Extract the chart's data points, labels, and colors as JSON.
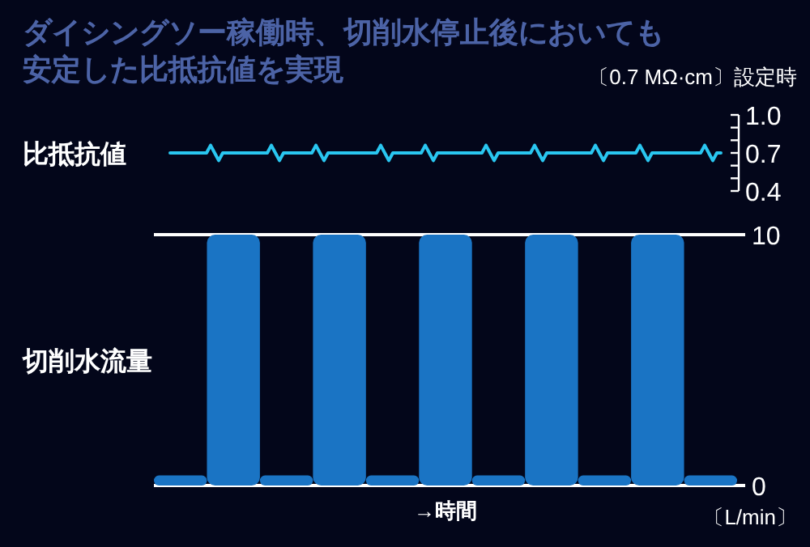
{
  "chart_data": [
    {
      "type": "line",
      "title": "ダイシングソー稼働時、切削水停止後においても安定した比抵抗値を実現",
      "ylabel": "比抵抗値",
      "annotations": [
        "〔0.7 MΩ·cm〕設定時"
      ],
      "categories": [
        null,
        null,
        null,
        null,
        null,
        null,
        null,
        null,
        null,
        null,
        null,
        null,
        null,
        null,
        null,
        null,
        null,
        null,
        null,
        null,
        null,
        null,
        null,
        null,
        null,
        null,
        null,
        null,
        null,
        null,
        null,
        null,
        null,
        null,
        null,
        null,
        null,
        null,
        null,
        null,
        null,
        null,
        null,
        null,
        null,
        null,
        null,
        null,
        null,
        null,
        null,
        null,
        null,
        null,
        null,
        null,
        null,
        null,
        null,
        null,
        null,
        null,
        null,
        null,
        null,
        null,
        null,
        null,
        null,
        null,
        null,
        null,
        null,
        null,
        null,
        null,
        null,
        null,
        null,
        null,
        null,
        null,
        null,
        null,
        null,
        null,
        null,
        null,
        null,
        null,
        null,
        null,
        null,
        null,
        null,
        null,
        null,
        null,
        null,
        null,
        null,
        null,
        null,
        null,
        null,
        null,
        null,
        null,
        null,
        null,
        null,
        null,
        null,
        null,
        null,
        null,
        null,
        null,
        null,
        null,
        null,
        null,
        null,
        null,
        null,
        null,
        null,
        null,
        null,
        null,
        null,
        null,
        null,
        null,
        null,
        null,
        null
      ],
      "series": [
        {
          "color": "#29c6f0",
          "values": [
            0.7,
            0.7,
            0.7,
            0.7,
            0.7,
            0.7,
            0.7,
            0.7,
            0.7,
            0.7,
            0.76,
            0.7,
            0.64,
            0.7,
            0.7,
            0.7,
            0.7,
            0.7,
            0.7,
            0.7,
            0.7,
            0.7,
            0.7,
            0.7,
            0.7,
            0.76,
            0.7,
            0.64,
            0.7,
            0.7,
            0.7,
            0.7,
            0.7,
            0.7,
            0.7,
            0.7,
            0.76,
            0.7,
            0.64,
            0.7,
            0.7,
            0.7,
            0.7,
            0.7,
            0.7,
            0.7,
            0.7,
            0.7,
            0.7,
            0.7,
            0.7,
            0.7,
            0.76,
            0.7,
            0.64,
            0.7,
            0.7,
            0.7,
            0.7,
            0.7,
            0.7,
            0.7,
            0.7,
            0.76,
            0.7,
            0.64,
            0.7,
            0.7,
            0.7,
            0.7,
            0.7,
            0.7,
            0.7,
            0.7,
            0.7,
            0.7,
            0.7,
            0.7,
            0.76,
            0.7,
            0.64,
            0.7,
            0.7,
            0.7,
            0.7,
            0.7,
            0.7,
            0.7,
            0.7,
            0.7,
            0.76,
            0.7,
            0.64,
            0.7,
            0.7,
            0.7,
            0.7,
            0.7,
            0.7,
            0.7,
            0.7,
            0.7,
            0.7,
            0.7,
            0.7,
            0.76,
            0.7,
            0.64,
            0.7,
            0.7,
            0.7,
            0.7,
            0.7,
            0.7,
            0.7,
            0.7,
            0.76,
            0.7,
            0.64,
            0.7,
            0.7,
            0.7,
            0.7,
            0.7,
            0.7,
            0.7,
            0.7,
            0.7,
            0.7,
            0.7,
            0.7,
            0.7,
            0.76,
            0.7,
            0.64,
            0.7,
            0.7
          ]
        }
      ],
      "ylim": [
        0.4,
        1.0
      ],
      "yticks": [
        {
          "value": 1.0,
          "label": "1.0"
        },
        {
          "value": 0.9,
          "label": null
        },
        {
          "value": 0.8,
          "label": null
        },
        0.7,
        {
          "value": 0.6,
          "label": null
        },
        {
          "value": 0.5,
          "label": null
        },
        0.4
      ],
      "tick_labels": "y",
      "grid": false,
      "line_style": "solid"
    },
    {
      "type": "bar",
      "ylabel": "切削水流量",
      "xlabel": "→時間",
      "annotations": [
        "〔L/min〕"
      ],
      "categories": [
        null,
        null,
        null,
        null,
        null,
        null,
        null,
        null,
        null,
        null,
        null
      ],
      "series": [
        {
          "color": "#1a74c4",
          "values": [
            0.4,
            10,
            0.4,
            10,
            0.4,
            10,
            0.4,
            10,
            0.4,
            10,
            0.4
          ]
        }
      ],
      "ylim": [
        0,
        10
      ],
      "yticks": [
        0,
        10
      ],
      "tick_labels": "y",
      "grid": "y"
    }
  ]
}
